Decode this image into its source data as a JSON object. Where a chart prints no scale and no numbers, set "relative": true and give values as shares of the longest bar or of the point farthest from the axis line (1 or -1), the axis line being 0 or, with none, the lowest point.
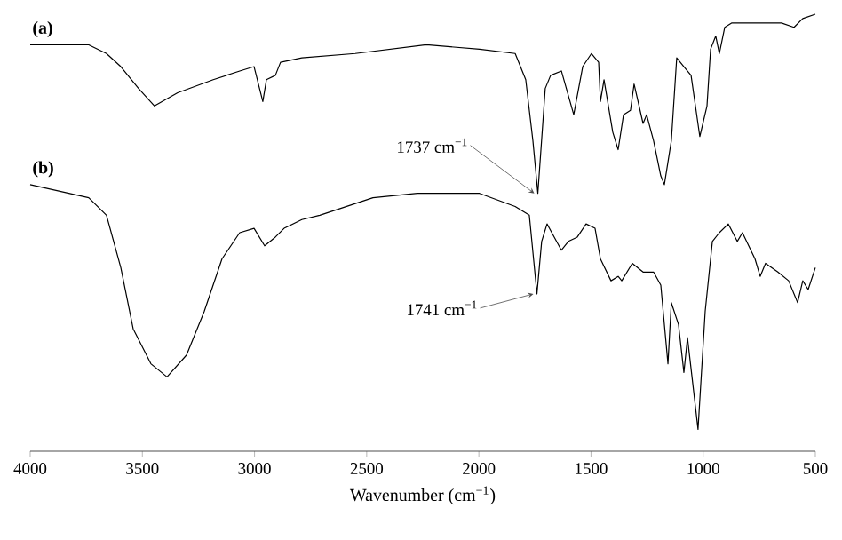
{
  "chart_data": {
    "type": "line",
    "relative": true,
    "xlabel": "Wavenumber (cm$^{−1}$)",
    "xlim": [
      4000,
      500
    ],
    "xticks": [
      4000,
      3500,
      3000,
      2500,
      2000,
      1500,
      1000,
      500
    ],
    "series": [
      {
        "name": "(a)",
        "color": "#000000",
        "x": [
          4000,
          3739,
          3660,
          3596,
          3517,
          3446,
          3343,
          3184,
          3066,
          3002,
          2963,
          2947,
          2907,
          2884,
          2789,
          2551,
          2234,
          1997,
          1838,
          1791,
          1759,
          1737,
          1704,
          1680,
          1632,
          1577,
          1537,
          1498,
          1466,
          1458,
          1442,
          1403,
          1379,
          1355,
          1324,
          1308,
          1268,
          1252,
          1221,
          1189,
          1173,
          1142,
          1118,
          1086,
          1054,
          1015,
          983,
          967,
          944,
          928,
          904,
          872,
          809,
          746,
          651,
          595,
          556,
          500
        ],
        "values": [
          0.93,
          0.93,
          0.91,
          0.88,
          0.83,
          0.79,
          0.82,
          0.85,
          0.87,
          0.88,
          0.8,
          0.85,
          0.86,
          0.89,
          0.9,
          0.91,
          0.93,
          0.92,
          0.91,
          0.85,
          0.71,
          0.59,
          0.83,
          0.86,
          0.87,
          0.77,
          0.88,
          0.91,
          0.89,
          0.8,
          0.85,
          0.73,
          0.69,
          0.77,
          0.78,
          0.84,
          0.75,
          0.77,
          0.71,
          0.63,
          0.61,
          0.71,
          0.9,
          0.88,
          0.86,
          0.72,
          0.79,
          0.92,
          0.95,
          0.91,
          0.97,
          0.98,
          0.98,
          0.98,
          0.98,
          0.97,
          0.99,
          1.0
        ]
      },
      {
        "name": "(b)",
        "color": "#000000",
        "x": [
          4000,
          3739,
          3660,
          3596,
          3541,
          3462,
          3390,
          3303,
          3224,
          3145,
          3066,
          3002,
          2955,
          2907,
          2868,
          2789,
          2709,
          2472,
          2274,
          1997,
          1838,
          1775,
          1741,
          1720,
          1696,
          1664,
          1632,
          1601,
          1561,
          1522,
          1482,
          1458,
          1411,
          1379,
          1363,
          1316,
          1268,
          1221,
          1189,
          1157,
          1142,
          1110,
          1086,
          1070,
          1023,
          991,
          959,
          928,
          888,
          848,
          825,
          769,
          746,
          722,
          667,
          619,
          579,
          556,
          532,
          500
        ],
        "values": [
          0.61,
          0.58,
          0.54,
          0.42,
          0.28,
          0.2,
          0.17,
          0.22,
          0.32,
          0.44,
          0.5,
          0.51,
          0.47,
          0.49,
          0.51,
          0.53,
          0.54,
          0.58,
          0.59,
          0.59,
          0.56,
          0.54,
          0.36,
          0.48,
          0.52,
          0.49,
          0.46,
          0.48,
          0.49,
          0.52,
          0.51,
          0.44,
          0.39,
          0.4,
          0.39,
          0.43,
          0.41,
          0.41,
          0.38,
          0.2,
          0.34,
          0.29,
          0.18,
          0.26,
          0.05,
          0.32,
          0.48,
          0.5,
          0.52,
          0.48,
          0.5,
          0.44,
          0.4,
          0.43,
          0.41,
          0.39,
          0.34,
          0.39,
          0.37,
          0.42
        ]
      }
    ],
    "annotations": [
      {
        "text": "1737 cm$^{−1}$",
        "x": 1737,
        "y": 0.59
      },
      {
        "text": "1741 cm$^{−1}$",
        "x": 1741,
        "y": 0.36
      }
    ]
  }
}
